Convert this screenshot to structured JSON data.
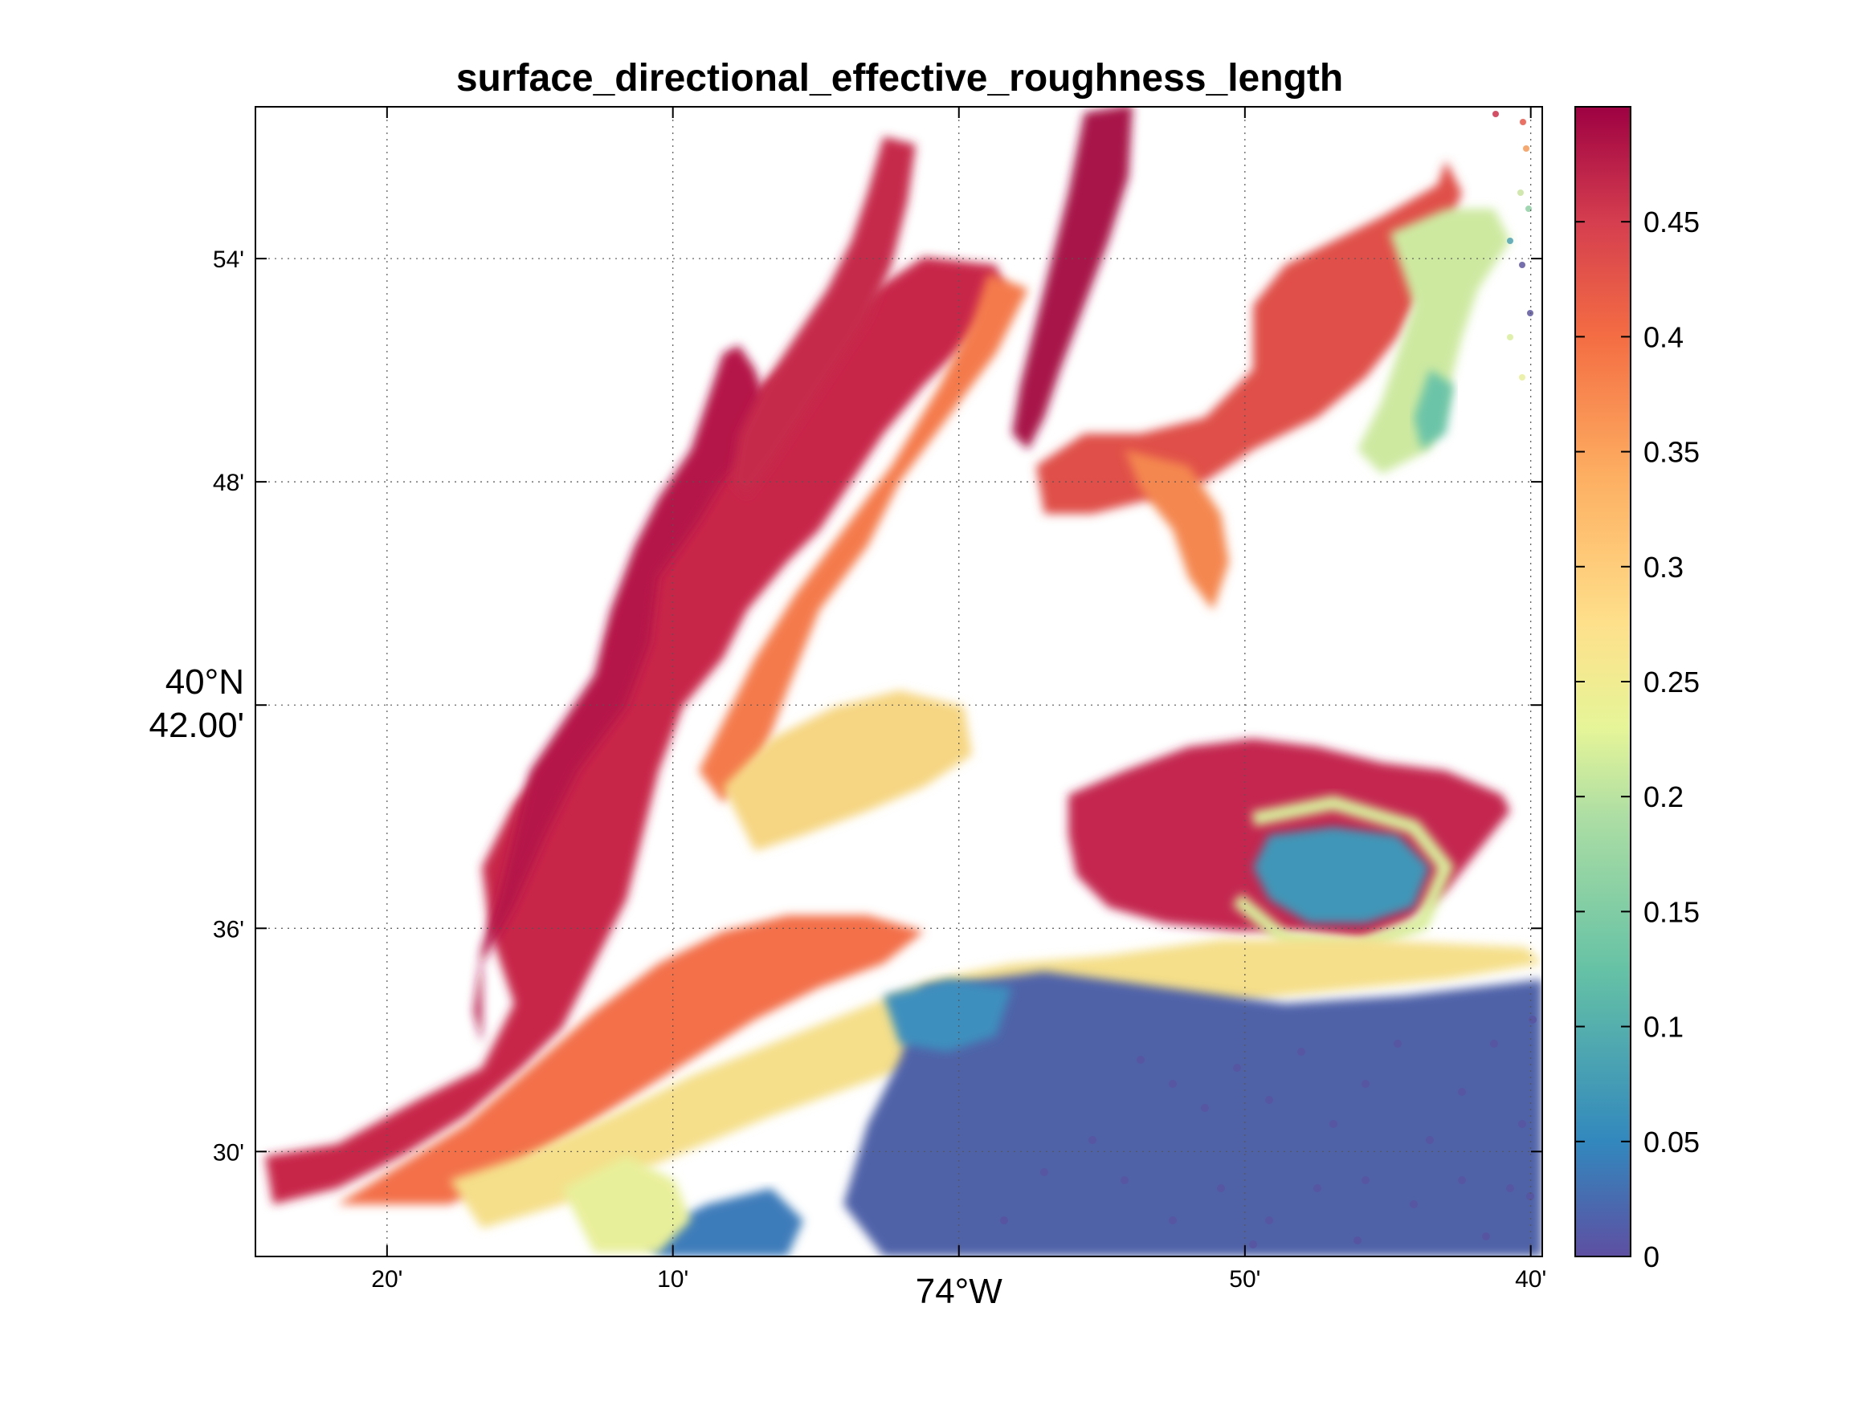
{
  "figure": {
    "title": "surface_directional_effective_roughness_length"
  },
  "map": {
    "x_ticks": [
      {
        "label": "20'",
        "lon": -74.3333
      },
      {
        "label": "10'",
        "lon": -74.1667
      },
      {
        "label": "74°W",
        "lon": -74.0
      },
      {
        "label": "50'",
        "lon": -73.8333
      },
      {
        "label": "40'",
        "lon": -73.6667
      }
    ],
    "y_ticks": [
      {
        "label": "54'",
        "lat": 40.9
      },
      {
        "label": "48'",
        "lat": 40.8
      },
      {
        "label": "40°N",
        "label2": "42.00'",
        "lat": 40.7
      },
      {
        "label": "36'",
        "lat": 40.6
      },
      {
        "label": "30'",
        "lat": 40.5
      }
    ],
    "lon_range": [
      -74.41,
      -73.66
    ],
    "lat_range": [
      40.453,
      40.968
    ],
    "grid": true,
    "grid_style": "dotted"
  },
  "colorbar": {
    "range": [
      0,
      0.5
    ],
    "ticks": [
      "0",
      "0.05",
      "0.1",
      "0.15",
      "0.2",
      "0.25",
      "0.3",
      "0.35",
      "0.4",
      "0.45"
    ],
    "tick_values": [
      0,
      0.05,
      0.1,
      0.15,
      0.2,
      0.25,
      0.3,
      0.35,
      0.4,
      0.45
    ],
    "colormap": "spectral",
    "colors": [
      "#5e4fa2",
      "#3288bd",
      "#66c2a5",
      "#abdda4",
      "#e6f598",
      "#fee08b",
      "#fdae61",
      "#f46d43",
      "#d53e4f",
      "#9e0142"
    ]
  }
}
